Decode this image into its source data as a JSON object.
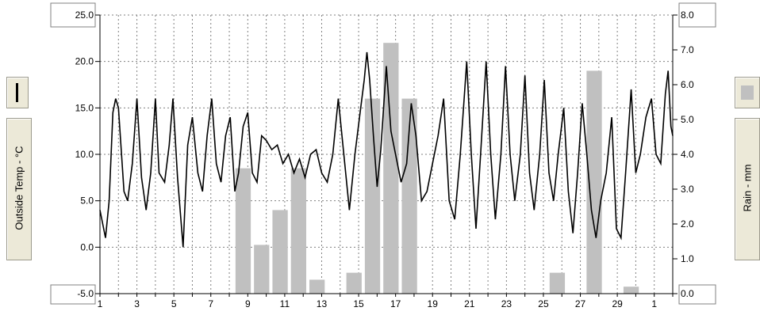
{
  "left_panel": {
    "legend_icon": "line-swatch-icon",
    "label": "Outside Temp - °C"
  },
  "right_panel": {
    "legend_icon": "bar-swatch-icon",
    "label": "Rain - mm"
  },
  "colors": {
    "temp_line": "#000000",
    "rain_bar": "#c0c0c0",
    "grid": "#808080",
    "panel": "#ece9d8"
  },
  "chart_data": {
    "type": "line+bar",
    "title": "",
    "xlabel": "",
    "x_ticks": [
      "1",
      "3",
      "5",
      "7",
      "9",
      "11",
      "13",
      "15",
      "17",
      "19",
      "21",
      "23",
      "25",
      "27",
      "29",
      "1"
    ],
    "xlim": [
      1,
      32
    ],
    "grid": true,
    "left_axis": {
      "label": "Outside Temp - °C",
      "ylim": [
        -5.0,
        25.0
      ],
      "ticks": [
        "-5.0",
        "0.0",
        "5.0",
        "10.0",
        "15.0",
        "20.0",
        "25.0"
      ]
    },
    "right_axis": {
      "label": "Rain - mm",
      "ylim": [
        0.0,
        8.0
      ],
      "ticks": [
        "0.0",
        "1.0",
        "2.0",
        "3.0",
        "4.0",
        "5.0",
        "6.0",
        "7.0",
        "8.0"
      ]
    },
    "series": [
      {
        "name": "Outside Temp - °C",
        "type": "line",
        "axis": "left",
        "points": [
          [
            1.0,
            4.0
          ],
          [
            1.3,
            1.0
          ],
          [
            1.5,
            5.0
          ],
          [
            1.7,
            14.5
          ],
          [
            1.85,
            16.0
          ],
          [
            2.0,
            15.0
          ],
          [
            2.3,
            6.0
          ],
          [
            2.5,
            5.0
          ],
          [
            2.75,
            9.0
          ],
          [
            3.0,
            16.0
          ],
          [
            3.25,
            7.5
          ],
          [
            3.5,
            4.0
          ],
          [
            3.75,
            8.0
          ],
          [
            4.0,
            16.0
          ],
          [
            4.2,
            8.0
          ],
          [
            4.5,
            7.0
          ],
          [
            4.75,
            11.0
          ],
          [
            4.95,
            16.0
          ],
          [
            5.2,
            7.5
          ],
          [
            5.5,
            0.0
          ],
          [
            5.75,
            11.0
          ],
          [
            6.0,
            14.0
          ],
          [
            6.3,
            8.0
          ],
          [
            6.55,
            6.0
          ],
          [
            6.8,
            12.0
          ],
          [
            7.05,
            16.0
          ],
          [
            7.3,
            9.0
          ],
          [
            7.55,
            7.0
          ],
          [
            7.8,
            12.0
          ],
          [
            8.05,
            14.0
          ],
          [
            8.3,
            6.0
          ],
          [
            8.5,
            8.0
          ],
          [
            8.75,
            13.0
          ],
          [
            9.0,
            14.5
          ],
          [
            9.25,
            8.0
          ],
          [
            9.5,
            7.0
          ],
          [
            9.75,
            12.0
          ],
          [
            10.0,
            11.5
          ],
          [
            10.3,
            10.5
          ],
          [
            10.6,
            11.0
          ],
          [
            10.9,
            9.0
          ],
          [
            11.2,
            10.0
          ],
          [
            11.5,
            8.0
          ],
          [
            11.8,
            9.5
          ],
          [
            12.1,
            7.5
          ],
          [
            12.4,
            10.0
          ],
          [
            12.7,
            10.5
          ],
          [
            13.0,
            8.0
          ],
          [
            13.3,
            7.0
          ],
          [
            13.6,
            10.0
          ],
          [
            13.9,
            16.0
          ],
          [
            14.2,
            10.0
          ],
          [
            14.5,
            4.0
          ],
          [
            14.8,
            10.0
          ],
          [
            15.05,
            14.0
          ],
          [
            15.3,
            18.0
          ],
          [
            15.45,
            21.0
          ],
          [
            15.6,
            18.0
          ],
          [
            15.8,
            12.0
          ],
          [
            16.0,
            6.5
          ],
          [
            16.2,
            10.5
          ],
          [
            16.5,
            19.5
          ],
          [
            16.75,
            12.5
          ],
          [
            17.0,
            10.0
          ],
          [
            17.3,
            7.0
          ],
          [
            17.6,
            9.0
          ],
          [
            17.85,
            15.5
          ],
          [
            18.1,
            12.0
          ],
          [
            18.4,
            5.0
          ],
          [
            18.7,
            6.0
          ],
          [
            19.0,
            9.0
          ],
          [
            19.3,
            12.0
          ],
          [
            19.6,
            16.0
          ],
          [
            19.9,
            5.0
          ],
          [
            20.2,
            3.0
          ],
          [
            20.5,
            10.0
          ],
          [
            20.85,
            20.0
          ],
          [
            21.1,
            10.0
          ],
          [
            21.35,
            2.0
          ],
          [
            21.6,
            10.0
          ],
          [
            21.9,
            20.0
          ],
          [
            22.15,
            10.0
          ],
          [
            22.4,
            3.0
          ],
          [
            22.7,
            10.0
          ],
          [
            22.95,
            19.5
          ],
          [
            23.2,
            10.0
          ],
          [
            23.45,
            5.0
          ],
          [
            23.75,
            10.0
          ],
          [
            24.0,
            18.5
          ],
          [
            24.25,
            8.0
          ],
          [
            24.5,
            4.0
          ],
          [
            24.8,
            10.0
          ],
          [
            25.05,
            18.0
          ],
          [
            25.3,
            8.0
          ],
          [
            25.55,
            5.0
          ],
          [
            25.8,
            10.0
          ],
          [
            26.1,
            15.0
          ],
          [
            26.35,
            6.0
          ],
          [
            26.6,
            1.5
          ],
          [
            26.85,
            8.0
          ],
          [
            27.1,
            15.5
          ],
          [
            27.35,
            10.0
          ],
          [
            27.6,
            4.0
          ],
          [
            27.85,
            1.0
          ],
          [
            28.1,
            5.0
          ],
          [
            28.4,
            8.0
          ],
          [
            28.7,
            14.0
          ],
          [
            28.95,
            2.0
          ],
          [
            29.2,
            1.0
          ],
          [
            29.45,
            8.0
          ],
          [
            29.75,
            17.0
          ],
          [
            30.0,
            8.0
          ],
          [
            30.25,
            10.0
          ],
          [
            30.55,
            14.0
          ],
          [
            30.85,
            16.0
          ],
          [
            31.1,
            10.0
          ],
          [
            31.35,
            9.0
          ],
          [
            31.6,
            16.5
          ],
          [
            31.75,
            19.0
          ],
          [
            31.9,
            13.0
          ],
          [
            32.0,
            12.0
          ]
        ]
      },
      {
        "name": "Rain - mm",
        "type": "bar",
        "axis": "right",
        "x": [
          8.75,
          9.75,
          10.75,
          11.75,
          12.75,
          14.75,
          15.75,
          16.75,
          17.75,
          25.75,
          27.75,
          29.75
        ],
        "values": [
          3.6,
          1.4,
          2.4,
          3.6,
          0.4,
          0.6,
          5.6,
          7.2,
          5.6,
          0.6,
          6.4,
          0.2
        ]
      }
    ]
  }
}
